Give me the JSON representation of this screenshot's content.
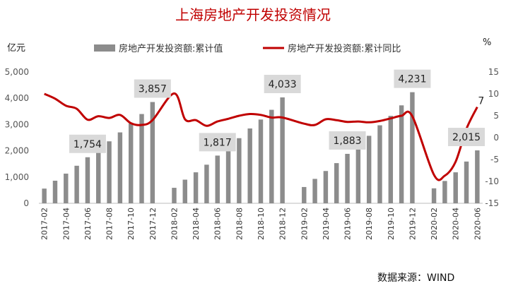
{
  "chart_data": {
    "type": "bar+line",
    "title": "上海房地产开发投资情况",
    "y_left_unit": "亿元",
    "y_right_unit": "%",
    "y_left_ticks": [
      "0",
      "1,000",
      "2,000",
      "3,000",
      "4,000",
      "5,000"
    ],
    "y_right_ticks": [
      "-15",
      "-10",
      "-5",
      "0",
      "5",
      "10",
      "15"
    ],
    "ylim_left": [
      0,
      5000
    ],
    "ylim_right": [
      -15,
      15
    ],
    "legend": [
      "房地产开发投资额:累计值",
      "房地产开发投资额:累计同比"
    ],
    "x_tick_labels": [
      "2017-02",
      "2017-04",
      "2017-06",
      "2017-08",
      "2017-10",
      "2017-12",
      "2018-02",
      "2018-04",
      "2018-06",
      "2018-08",
      "2018-10",
      "2018-12",
      "2019-02",
      "2019-04",
      "2019-06",
      "2019-08",
      "2019-10",
      "2019-12",
      "2020-02",
      "2020-04",
      "2020-06"
    ],
    "series": [
      {
        "name": "房地产开发投资额:累计值",
        "type": "bar",
        "color": "#8c8c8c",
        "values": [
          {
            "x": "2017-02",
            "y": 560
          },
          {
            "x": "2017-03",
            "y": 860
          },
          {
            "x": "2017-04",
            "y": 1130
          },
          {
            "x": "2017-05",
            "y": 1430
          },
          {
            "x": "2017-06",
            "y": 1754
          },
          {
            "x": "2017-07",
            "y": 2050
          },
          {
            "x": "2017-08",
            "y": 2360
          },
          {
            "x": "2017-09",
            "y": 2700
          },
          {
            "x": "2017-10",
            "y": 3040
          },
          {
            "x": "2017-11",
            "y": 3400
          },
          {
            "x": "2017-12",
            "y": 3857
          },
          {
            "x": "2018-02",
            "y": 590
          },
          {
            "x": "2018-03",
            "y": 900
          },
          {
            "x": "2018-04",
            "y": 1180
          },
          {
            "x": "2018-05",
            "y": 1470
          },
          {
            "x": "2018-06",
            "y": 1817
          },
          {
            "x": "2018-07",
            "y": 2140
          },
          {
            "x": "2018-08",
            "y": 2480
          },
          {
            "x": "2018-09",
            "y": 2850
          },
          {
            "x": "2018-10",
            "y": 3190
          },
          {
            "x": "2018-11",
            "y": 3560
          },
          {
            "x": "2018-12",
            "y": 4033
          },
          {
            "x": "2019-02",
            "y": 620
          },
          {
            "x": "2019-03",
            "y": 930
          },
          {
            "x": "2019-04",
            "y": 1230
          },
          {
            "x": "2019-05",
            "y": 1530
          },
          {
            "x": "2019-06",
            "y": 1883
          },
          {
            "x": "2019-07",
            "y": 2220
          },
          {
            "x": "2019-08",
            "y": 2570
          },
          {
            "x": "2019-09",
            "y": 2970
          },
          {
            "x": "2019-10",
            "y": 3330
          },
          {
            "x": "2019-11",
            "y": 3730
          },
          {
            "x": "2019-12",
            "y": 4231
          },
          {
            "x": "2020-02",
            "y": 570
          },
          {
            "x": "2020-03",
            "y": 850
          },
          {
            "x": "2020-04",
            "y": 1180
          },
          {
            "x": "2020-05",
            "y": 1590
          },
          {
            "x": "2020-06",
            "y": 2015
          }
        ]
      },
      {
        "name": "房地产开发投资额:累计同比",
        "type": "line",
        "axis": "right",
        "color": "#c00000",
        "values": [
          {
            "x": "2017-02",
            "y": 10
          },
          {
            "x": "2017-03",
            "y": 8.9
          },
          {
            "x": "2017-04",
            "y": 7.3
          },
          {
            "x": "2017-05",
            "y": 6.6
          },
          {
            "x": "2017-06",
            "y": 4.1
          },
          {
            "x": "2017-07",
            "y": 4.9
          },
          {
            "x": "2017-08",
            "y": 4.5
          },
          {
            "x": "2017-09",
            "y": 5.2
          },
          {
            "x": "2017-10",
            "y": 3.3
          },
          {
            "x": "2017-11",
            "y": 2.9
          },
          {
            "x": "2017-12",
            "y": 4.0
          },
          {
            "x": "2018-02",
            "y": 10.1
          },
          {
            "x": "2018-03",
            "y": 4.2
          },
          {
            "x": "2018-04",
            "y": 4.0
          },
          {
            "x": "2018-05",
            "y": 2.7
          },
          {
            "x": "2018-06",
            "y": 3.7
          },
          {
            "x": "2018-07",
            "y": 4.3
          },
          {
            "x": "2018-08",
            "y": 5.0
          },
          {
            "x": "2018-09",
            "y": 5.4
          },
          {
            "x": "2018-10",
            "y": 5.2
          },
          {
            "x": "2018-11",
            "y": 4.6
          },
          {
            "x": "2018-12",
            "y": 4.6
          },
          {
            "x": "2019-02",
            "y": 3.2
          },
          {
            "x": "2019-03",
            "y": 2.9
          },
          {
            "x": "2019-04",
            "y": 4.2
          },
          {
            "x": "2019-05",
            "y": 4.0
          },
          {
            "x": "2019-06",
            "y": 3.6
          },
          {
            "x": "2019-07",
            "y": 3.7
          },
          {
            "x": "2019-08",
            "y": 3.5
          },
          {
            "x": "2019-09",
            "y": 3.8
          },
          {
            "x": "2019-10",
            "y": 4.4
          },
          {
            "x": "2019-11",
            "y": 5.0
          },
          {
            "x": "2019-12",
            "y": 4.9
          },
          {
            "x": "2020-02",
            "y": -8.5
          },
          {
            "x": "2020-03",
            "y": -8.7
          },
          {
            "x": "2020-04",
            "y": -5.5
          },
          {
            "x": "2020-05",
            "y": 2.0
          },
          {
            "x": "2020-06",
            "y": 7.0
          }
        ]
      }
    ],
    "data_labels": [
      {
        "x": "2017-06",
        "text": "1,754"
      },
      {
        "x": "2017-12",
        "text": "3,857"
      },
      {
        "x": "2018-06",
        "text": "1,817"
      },
      {
        "x": "2018-12",
        "text": "4,033"
      },
      {
        "x": "2019-06",
        "text": "1,883"
      },
      {
        "x": "2019-12",
        "text": "4,231"
      },
      {
        "x": "2020-06",
        "text": "2,015"
      }
    ],
    "line_end_label": "7",
    "source": "数据来源：WIND"
  }
}
